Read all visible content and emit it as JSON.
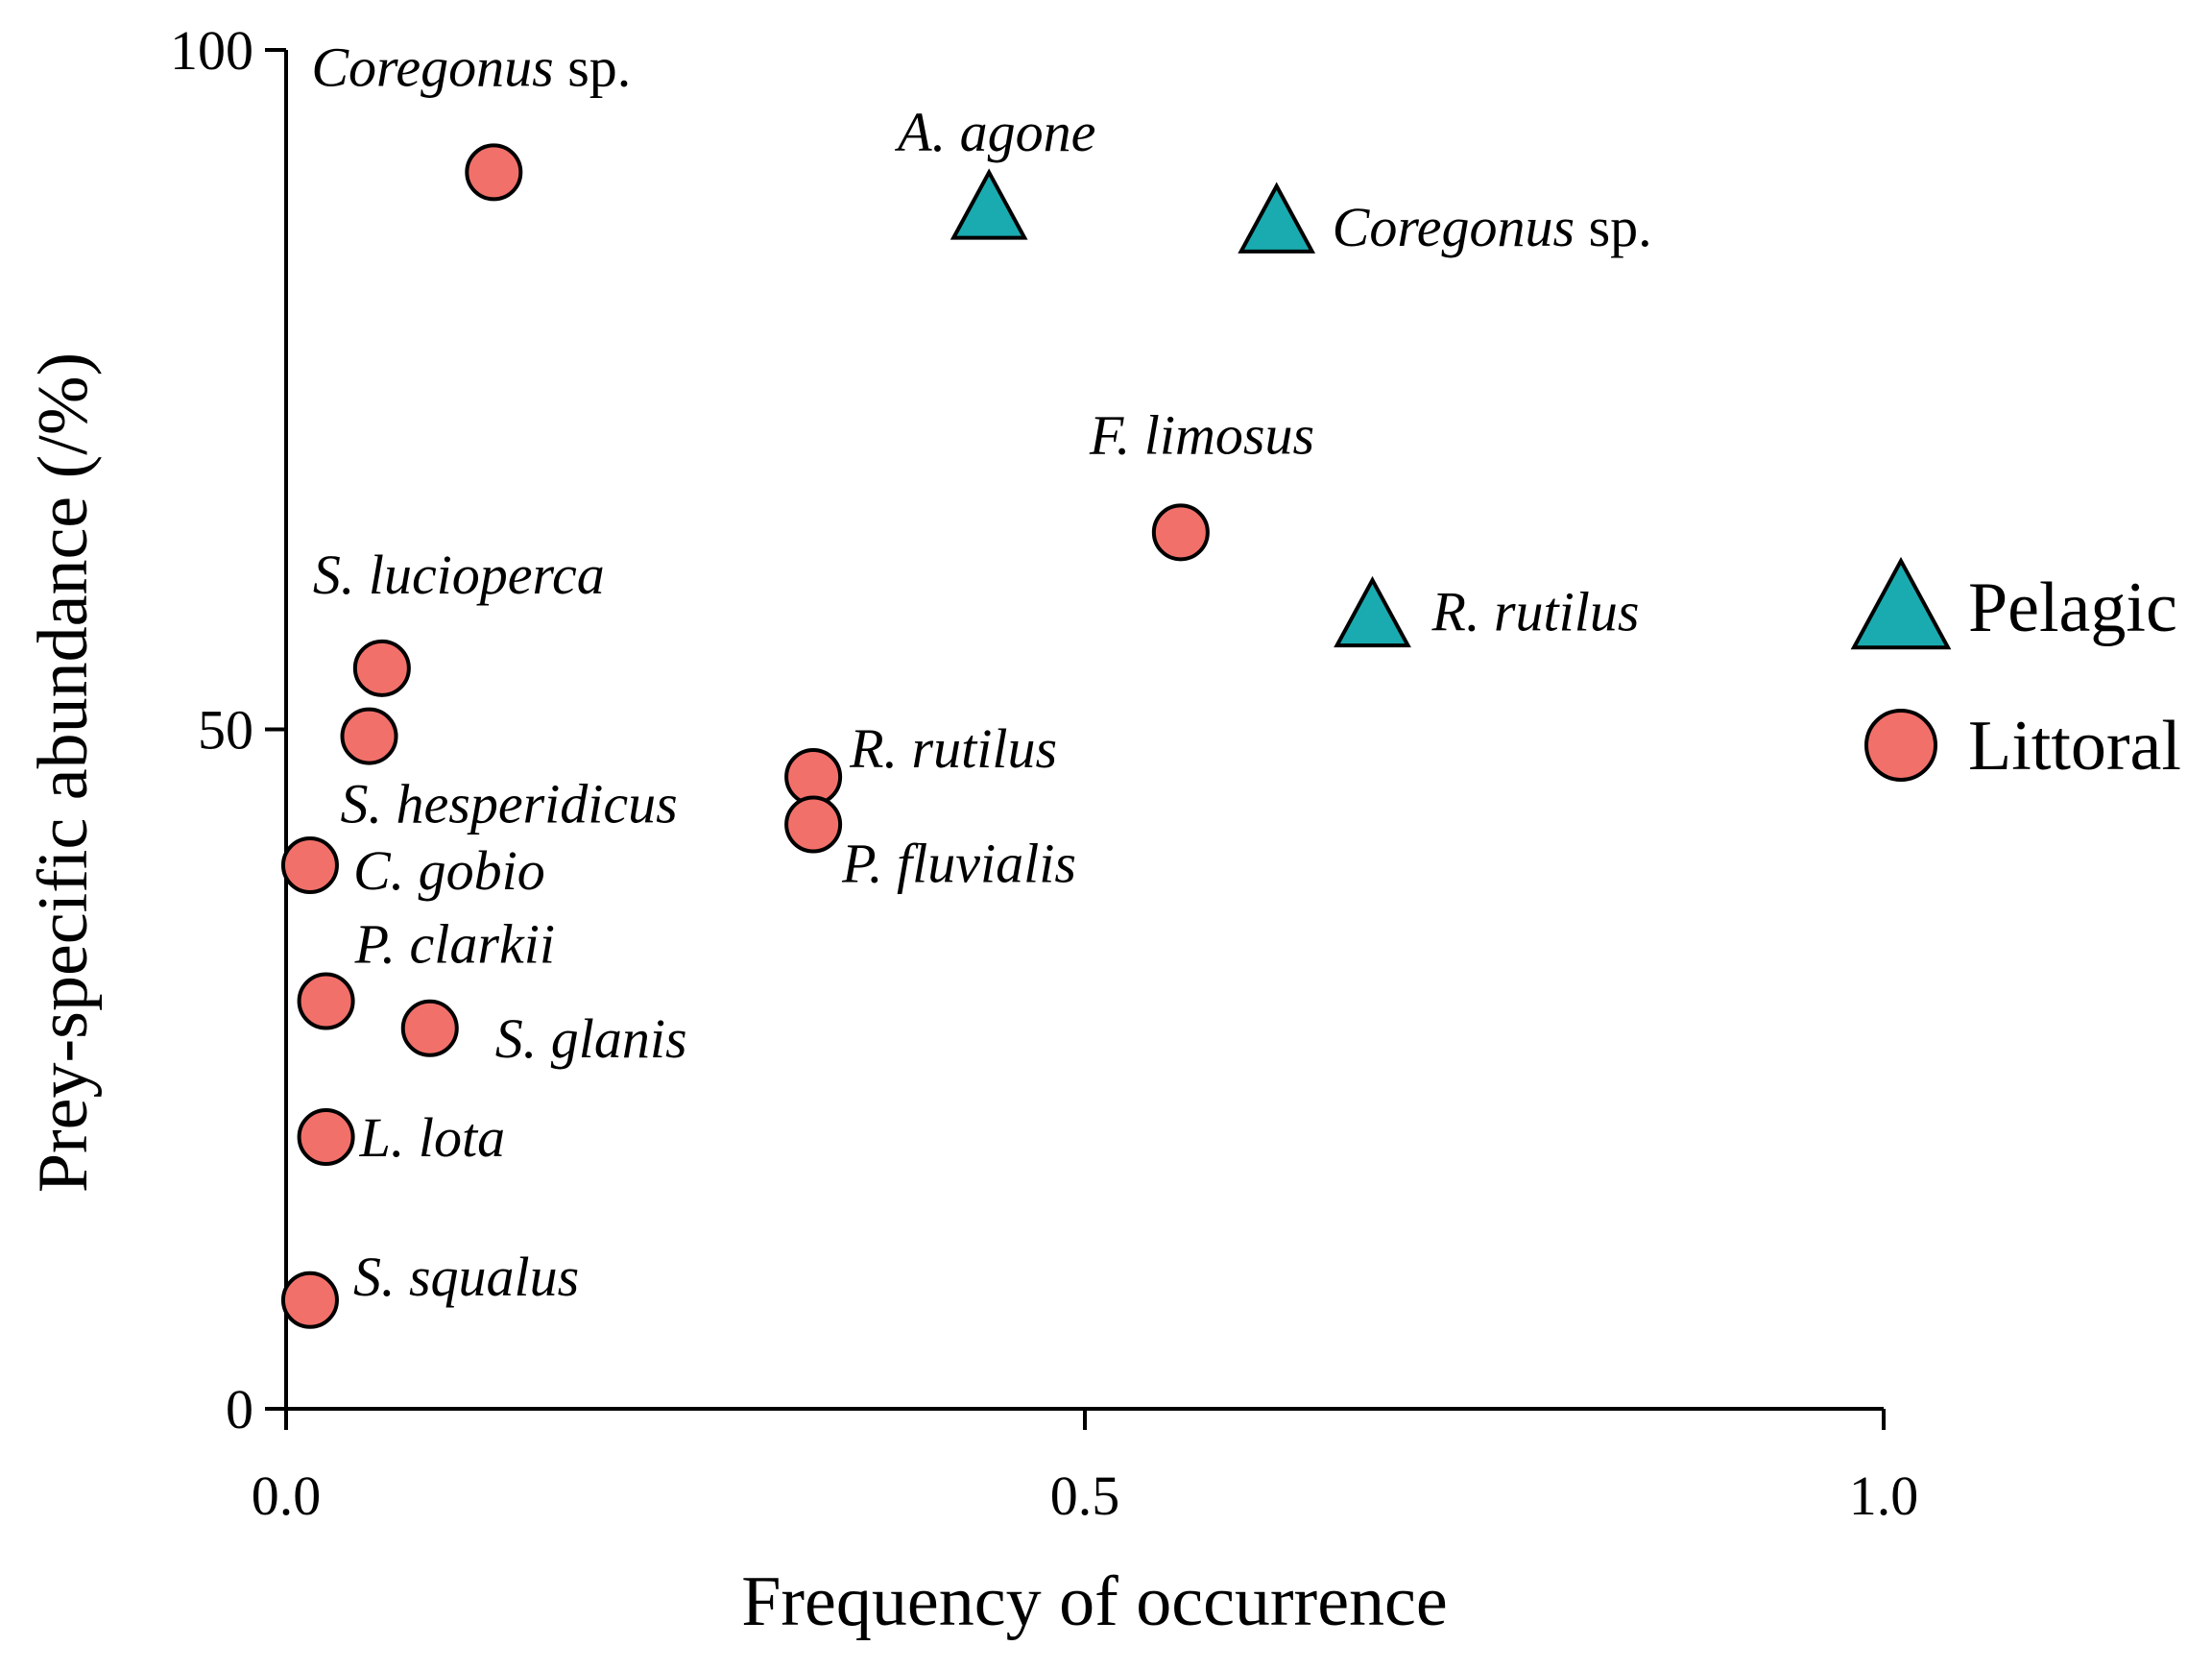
{
  "chart_data": {
    "type": "scatter",
    "xlabel": "Frequency of occurrence",
    "ylabel": "Prey-specific abundance (/%)",
    "xlim": [
      0,
      1.0
    ],
    "ylim": [
      0,
      100
    ],
    "x_ticks": [
      "0.0",
      "0.5",
      "1.0"
    ],
    "x_tick_values": [
      0,
      0.5,
      1.0
    ],
    "y_ticks": [
      "0",
      "50",
      "100"
    ],
    "y_tick_values": [
      0,
      50,
      100
    ],
    "grid": false,
    "legend_position": "right",
    "colors": {
      "Pelagic": "#1aabb0",
      "Littoral": "#f2706a"
    },
    "series": [
      {
        "name": "Pelagic",
        "marker": "triangle",
        "points": [
          {
            "x": 0.44,
            "y": 88,
            "italic": "A. agone",
            "suffix": ""
          },
          {
            "x": 0.62,
            "y": 87,
            "italic": "Coregonus",
            "suffix": " sp."
          },
          {
            "x": 0.68,
            "y": 58,
            "italic": "R. rutilus",
            "suffix": ""
          }
        ]
      },
      {
        "name": "Littoral",
        "marker": "circle",
        "points": [
          {
            "x": 0.13,
            "y": 91,
            "italic": "Coregonus",
            "suffix": " sp."
          },
          {
            "x": 0.56,
            "y": 64.5,
            "italic": "F. limosus",
            "suffix": ""
          },
          {
            "x": 0.06,
            "y": 54.5,
            "italic": "S. lucioperca",
            "suffix": ""
          },
          {
            "x": 0.052,
            "y": 49.5,
            "italic": "S. hesperidicus",
            "suffix": ""
          },
          {
            "x": 0.33,
            "y": 46.5,
            "italic": "R. rutilus",
            "suffix": ""
          },
          {
            "x": 0.33,
            "y": 43,
            "italic": "P. fluvialis",
            "suffix": ""
          },
          {
            "x": 0.015,
            "y": 40,
            "italic": "C. gobio",
            "suffix": ""
          },
          {
            "x": 0.025,
            "y": 30,
            "italic": "P. clarkii",
            "suffix": ""
          },
          {
            "x": 0.09,
            "y": 28,
            "italic": "S. glanis",
            "suffix": ""
          },
          {
            "x": 0.025,
            "y": 20,
            "italic": "L. lota",
            "suffix": ""
          },
          {
            "x": 0.015,
            "y": 8,
            "italic": "S. squalus",
            "suffix": ""
          }
        ]
      }
    ]
  }
}
